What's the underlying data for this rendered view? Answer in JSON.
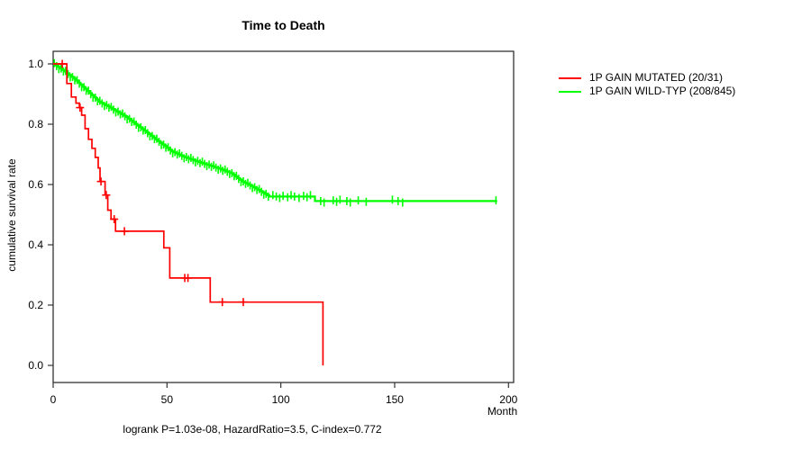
{
  "window": {
    "title": "Time to Death survival plot"
  },
  "colors": {
    "mutated": "#ff0000",
    "wildtype": "#00ff00",
    "axis": "#333333",
    "text": "#000000",
    "background": "#ffffff"
  },
  "legend": {
    "items": [
      {
        "label": "1P GAIN MUTATED (20/31)",
        "color": "#ff0000"
      },
      {
        "label": "1P GAIN WILD-TYP (208/845)",
        "color": "#00ff00"
      }
    ]
  },
  "chart_data": {
    "type": "line",
    "subtype": "kaplan-meier-step",
    "title": "Time to Death",
    "xlabel": "Month",
    "ylabel": "cumulative survival rate",
    "annotation": "logrank P=1.03e-08, HazardRatio=3.5, C-index=0.772",
    "xlim": [
      0,
      202
    ],
    "ylim": [
      0.0,
      1.0
    ],
    "xticks": [
      "0",
      "50",
      "100",
      "150",
      "200"
    ],
    "xtick_values": [
      0,
      50,
      100,
      150,
      200
    ],
    "yticks": [
      "1.0",
      "0.8",
      "0.6",
      "0.4",
      "0.2",
      "0.0"
    ],
    "ytick_values": [
      1.0,
      0.8,
      0.6,
      0.4,
      0.2,
      0.0
    ],
    "grid": false,
    "legend_position": "right-outside",
    "series": [
      {
        "name": "1P GAIN MUTATED (20/31)",
        "color": "#ff0000",
        "events_over_n": "20/31",
        "steps": [
          [
            0,
            1.0
          ],
          [
            6,
            0.935
          ],
          [
            8,
            0.89
          ],
          [
            10,
            0.87
          ],
          [
            11.5,
            0.855
          ],
          [
            12.5,
            0.83
          ],
          [
            14,
            0.785
          ],
          [
            15.5,
            0.75
          ],
          [
            17,
            0.72
          ],
          [
            18.5,
            0.69
          ],
          [
            19.8,
            0.655
          ],
          [
            20.6,
            0.61
          ],
          [
            22.8,
            0.565
          ],
          [
            24,
            0.515
          ],
          [
            25.4,
            0.485
          ],
          [
            27.4,
            0.445
          ],
          [
            48.6,
            0.39
          ],
          [
            51.2,
            0.29
          ],
          [
            69,
            0.21
          ],
          [
            118.5,
            0.0
          ]
        ],
        "censor_months": [
          4,
          11.8,
          21,
          23.3,
          26.8,
          31.3,
          57.8,
          59.2,
          74.3,
          83.5
        ],
        "end_month": 118.5
      },
      {
        "name": "1P GAIN WILD-TYP (208/845)",
        "color": "#00ff00",
        "events_over_n": "208/845",
        "anchors": [
          [
            0,
            1.0
          ],
          [
            5,
            0.975
          ],
          [
            10,
            0.945
          ],
          [
            15,
            0.91
          ],
          [
            20,
            0.875
          ],
          [
            25,
            0.855
          ],
          [
            32,
            0.824
          ],
          [
            38,
            0.79
          ],
          [
            45,
            0.75
          ],
          [
            52,
            0.71
          ],
          [
            58,
            0.69
          ],
          [
            65,
            0.672
          ],
          [
            72,
            0.655
          ],
          [
            78,
            0.638
          ],
          [
            83,
            0.61
          ],
          [
            87,
            0.595
          ],
          [
            91,
            0.578
          ],
          [
            95,
            0.56
          ],
          [
            115,
            0.545
          ],
          [
            195,
            0.545
          ]
        ],
        "dense_censor_band": {
          "start": 0.5,
          "end": 94.5,
          "step": 1
        },
        "censor_months_tail": [
          96.5,
          98,
          99.5,
          101,
          103,
          104.5,
          106,
          108,
          110,
          111.5,
          113,
          117.5,
          119,
          123,
          124.5,
          126,
          129,
          130.5,
          134,
          137.5,
          149,
          151.5,
          153.5,
          194.5
        ],
        "end_month": 195
      }
    ]
  }
}
